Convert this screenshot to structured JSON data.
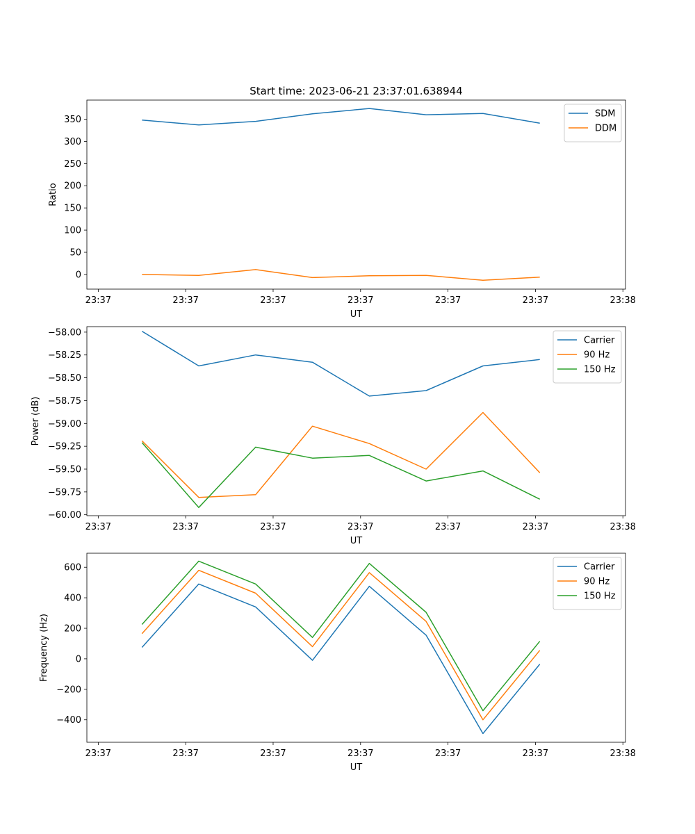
{
  "figure": {
    "title": "Start time: 2023-06-21 23:37:01.638944"
  },
  "chart_data": [
    {
      "type": "line",
      "title": "Start time: 2023-06-21 23:37:01.638944",
      "xlabel": "UT",
      "ylabel": "Ratio",
      "x_tick_labels": [
        "23:37",
        "23:37",
        "23:37",
        "23:37",
        "23:37",
        "23:37",
        "23:38"
      ],
      "xlim": [
        -0.13,
        6.03
      ],
      "ylim": [
        -33,
        393
      ],
      "y_ticks": [
        0,
        50,
        100,
        150,
        200,
        250,
        300,
        350
      ],
      "x": [
        0.5,
        1.15,
        1.8,
        2.45,
        3.1,
        3.75,
        4.4,
        5.05
      ],
      "series": [
        {
          "name": "SDM",
          "color": "#1f77b4",
          "values": [
            348,
            337,
            345,
            362,
            374,
            360,
            363,
            341
          ]
        },
        {
          "name": "DDM",
          "color": "#ff7f0e",
          "values": [
            0,
            -2,
            11,
            -7,
            -3,
            -2,
            -13,
            -6
          ]
        }
      ],
      "legend": "top-right",
      "grid": false
    },
    {
      "type": "line",
      "xlabel": "UT",
      "ylabel": "Power (dB)",
      "x_tick_labels": [
        "23:37",
        "23:37",
        "23:37",
        "23:37",
        "23:37",
        "23:37",
        "23:38"
      ],
      "xlim": [
        -0.13,
        6.03
      ],
      "ylim": [
        -60.01,
        -57.94
      ],
      "y_ticks": [
        -60.0,
        -59.75,
        -59.5,
        -59.25,
        -59.0,
        -58.75,
        -58.5,
        -58.25,
        -58.0
      ],
      "y_tick_labels": [
        "−60.00",
        "−59.75",
        "−59.50",
        "−59.25",
        "−59.00",
        "−58.75",
        "−58.50",
        "−58.25",
        "−58.00"
      ],
      "x": [
        0.5,
        1.15,
        1.8,
        2.45,
        3.1,
        3.75,
        4.4,
        5.05
      ],
      "series": [
        {
          "name": "Carrier",
          "color": "#1f77b4",
          "values": [
            -57.99,
            -58.37,
            -58.25,
            -58.33,
            -58.7,
            -58.64,
            -58.37,
            -58.3
          ]
        },
        {
          "name": "90 Hz",
          "color": "#ff7f0e",
          "values": [
            -59.19,
            -59.81,
            -59.78,
            -59.03,
            -59.22,
            -59.5,
            -58.88,
            -59.54
          ]
        },
        {
          "name": "150 Hz",
          "color": "#2ca02c",
          "values": [
            -59.21,
            -59.92,
            -59.26,
            -59.38,
            -59.35,
            -59.63,
            -59.52,
            -59.83
          ]
        }
      ],
      "legend": "top-right",
      "grid": false
    },
    {
      "type": "line",
      "xlabel": "UT",
      "ylabel": "Frequency (Hz)",
      "x_tick_labels": [
        "23:37",
        "23:37",
        "23:37",
        "23:37",
        "23:37",
        "23:37",
        "23:38"
      ],
      "xlim": [
        -0.13,
        6.03
      ],
      "ylim": [
        -547,
        692
      ],
      "y_ticks": [
        -400,
        -200,
        0,
        200,
        400,
        600
      ],
      "y_tick_labels": [
        "−400",
        "−200",
        "0",
        "200",
        "400",
        "600"
      ],
      "x": [
        0.5,
        1.15,
        1.8,
        2.45,
        3.1,
        3.75,
        4.4,
        5.05
      ],
      "series": [
        {
          "name": "Carrier",
          "color": "#1f77b4",
          "values": [
            75,
            490,
            340,
            -10,
            475,
            155,
            -490,
            -35
          ]
        },
        {
          "name": "90 Hz",
          "color": "#ff7f0e",
          "values": [
            165,
            580,
            430,
            80,
            565,
            245,
            -400,
            55
          ]
        },
        {
          "name": "150 Hz",
          "color": "#2ca02c",
          "values": [
            225,
            640,
            490,
            140,
            625,
            305,
            -340,
            115
          ]
        }
      ],
      "legend": "top-right",
      "grid": false
    }
  ]
}
